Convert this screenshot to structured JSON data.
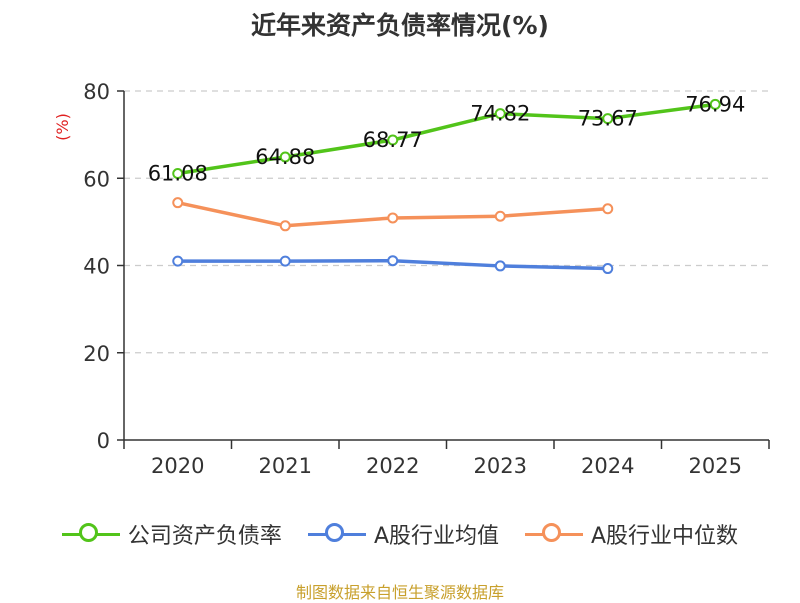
{
  "chart_data": {
    "type": "line",
    "title": "近年来资产负债率情况(%)",
    "ylabel": "(%)",
    "xlabel": "",
    "ylim": [
      0,
      80
    ],
    "yticks": [
      0,
      20,
      40,
      60,
      80
    ],
    "categories": [
      "2020",
      "2021",
      "2022",
      "2023",
      "2024",
      "2025"
    ],
    "grid": true,
    "legend_position": "bottom",
    "series": [
      {
        "name": "公司资产负债率",
        "color": "#52c41a",
        "show_labels": true,
        "values": [
          61.08,
          64.88,
          68.77,
          74.82,
          73.67,
          76.94
        ],
        "labels": [
          "61.08",
          "64.88",
          "68.77",
          "74.82",
          "73.67",
          "76.94"
        ]
      },
      {
        "name": "A股行业均值",
        "color": "#4f7fdc",
        "show_labels": false,
        "values": [
          41.0,
          41.0,
          41.1,
          39.9,
          39.3,
          null
        ]
      },
      {
        "name": "A股行业中位数",
        "color": "#f5915a",
        "show_labels": false,
        "values": [
          54.4,
          49.1,
          50.9,
          51.3,
          53.0,
          null
        ]
      }
    ]
  },
  "source": "制图数据来自恒生聚源数据库",
  "colors": {
    "axis": "#333333",
    "grid": "#cccccc",
    "ylabel": "#e02020",
    "source": "#c8a02c"
  }
}
